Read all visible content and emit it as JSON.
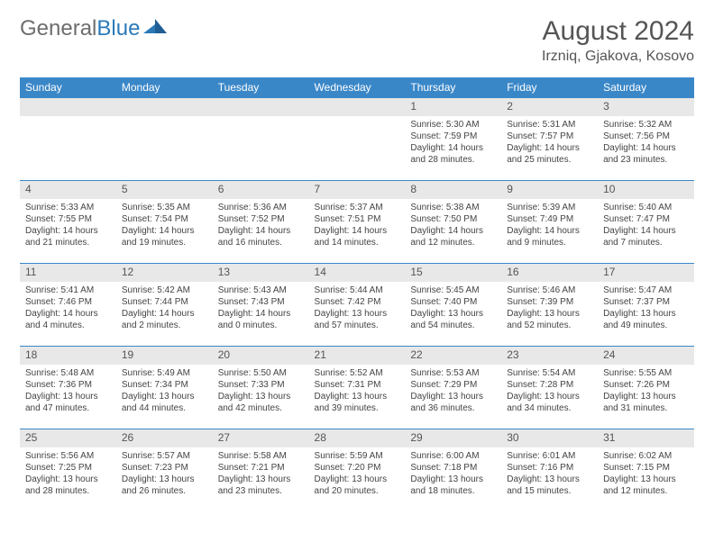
{
  "brand": {
    "part1": "General",
    "part2": "Blue"
  },
  "title": "August 2024",
  "location": "Irzniq, Gjakova, Kosovo",
  "colors": {
    "header_bg": "#3a87c8",
    "header_text": "#ffffff",
    "daynum_bg": "#e8e8e8",
    "border": "#3a87c8",
    "text": "#444444",
    "brand_gray": "#6d6d6d",
    "brand_blue": "#2a7ab9"
  },
  "day_headers": [
    "Sunday",
    "Monday",
    "Tuesday",
    "Wednesday",
    "Thursday",
    "Friday",
    "Saturday"
  ],
  "weeks": [
    [
      null,
      null,
      null,
      null,
      {
        "n": "1",
        "sr": "Sunrise: 5:30 AM",
        "ss": "Sunset: 7:59 PM",
        "dl1": "Daylight: 14 hours",
        "dl2": "and 28 minutes."
      },
      {
        "n": "2",
        "sr": "Sunrise: 5:31 AM",
        "ss": "Sunset: 7:57 PM",
        "dl1": "Daylight: 14 hours",
        "dl2": "and 25 minutes."
      },
      {
        "n": "3",
        "sr": "Sunrise: 5:32 AM",
        "ss": "Sunset: 7:56 PM",
        "dl1": "Daylight: 14 hours",
        "dl2": "and 23 minutes."
      }
    ],
    [
      {
        "n": "4",
        "sr": "Sunrise: 5:33 AM",
        "ss": "Sunset: 7:55 PM",
        "dl1": "Daylight: 14 hours",
        "dl2": "and 21 minutes."
      },
      {
        "n": "5",
        "sr": "Sunrise: 5:35 AM",
        "ss": "Sunset: 7:54 PM",
        "dl1": "Daylight: 14 hours",
        "dl2": "and 19 minutes."
      },
      {
        "n": "6",
        "sr": "Sunrise: 5:36 AM",
        "ss": "Sunset: 7:52 PM",
        "dl1": "Daylight: 14 hours",
        "dl2": "and 16 minutes."
      },
      {
        "n": "7",
        "sr": "Sunrise: 5:37 AM",
        "ss": "Sunset: 7:51 PM",
        "dl1": "Daylight: 14 hours",
        "dl2": "and 14 minutes."
      },
      {
        "n": "8",
        "sr": "Sunrise: 5:38 AM",
        "ss": "Sunset: 7:50 PM",
        "dl1": "Daylight: 14 hours",
        "dl2": "and 12 minutes."
      },
      {
        "n": "9",
        "sr": "Sunrise: 5:39 AM",
        "ss": "Sunset: 7:49 PM",
        "dl1": "Daylight: 14 hours",
        "dl2": "and 9 minutes."
      },
      {
        "n": "10",
        "sr": "Sunrise: 5:40 AM",
        "ss": "Sunset: 7:47 PM",
        "dl1": "Daylight: 14 hours",
        "dl2": "and 7 minutes."
      }
    ],
    [
      {
        "n": "11",
        "sr": "Sunrise: 5:41 AM",
        "ss": "Sunset: 7:46 PM",
        "dl1": "Daylight: 14 hours",
        "dl2": "and 4 minutes."
      },
      {
        "n": "12",
        "sr": "Sunrise: 5:42 AM",
        "ss": "Sunset: 7:44 PM",
        "dl1": "Daylight: 14 hours",
        "dl2": "and 2 minutes."
      },
      {
        "n": "13",
        "sr": "Sunrise: 5:43 AM",
        "ss": "Sunset: 7:43 PM",
        "dl1": "Daylight: 14 hours",
        "dl2": "and 0 minutes."
      },
      {
        "n": "14",
        "sr": "Sunrise: 5:44 AM",
        "ss": "Sunset: 7:42 PM",
        "dl1": "Daylight: 13 hours",
        "dl2": "and 57 minutes."
      },
      {
        "n": "15",
        "sr": "Sunrise: 5:45 AM",
        "ss": "Sunset: 7:40 PM",
        "dl1": "Daylight: 13 hours",
        "dl2": "and 54 minutes."
      },
      {
        "n": "16",
        "sr": "Sunrise: 5:46 AM",
        "ss": "Sunset: 7:39 PM",
        "dl1": "Daylight: 13 hours",
        "dl2": "and 52 minutes."
      },
      {
        "n": "17",
        "sr": "Sunrise: 5:47 AM",
        "ss": "Sunset: 7:37 PM",
        "dl1": "Daylight: 13 hours",
        "dl2": "and 49 minutes."
      }
    ],
    [
      {
        "n": "18",
        "sr": "Sunrise: 5:48 AM",
        "ss": "Sunset: 7:36 PM",
        "dl1": "Daylight: 13 hours",
        "dl2": "and 47 minutes."
      },
      {
        "n": "19",
        "sr": "Sunrise: 5:49 AM",
        "ss": "Sunset: 7:34 PM",
        "dl1": "Daylight: 13 hours",
        "dl2": "and 44 minutes."
      },
      {
        "n": "20",
        "sr": "Sunrise: 5:50 AM",
        "ss": "Sunset: 7:33 PM",
        "dl1": "Daylight: 13 hours",
        "dl2": "and 42 minutes."
      },
      {
        "n": "21",
        "sr": "Sunrise: 5:52 AM",
        "ss": "Sunset: 7:31 PM",
        "dl1": "Daylight: 13 hours",
        "dl2": "and 39 minutes."
      },
      {
        "n": "22",
        "sr": "Sunrise: 5:53 AM",
        "ss": "Sunset: 7:29 PM",
        "dl1": "Daylight: 13 hours",
        "dl2": "and 36 minutes."
      },
      {
        "n": "23",
        "sr": "Sunrise: 5:54 AM",
        "ss": "Sunset: 7:28 PM",
        "dl1": "Daylight: 13 hours",
        "dl2": "and 34 minutes."
      },
      {
        "n": "24",
        "sr": "Sunrise: 5:55 AM",
        "ss": "Sunset: 7:26 PM",
        "dl1": "Daylight: 13 hours",
        "dl2": "and 31 minutes."
      }
    ],
    [
      {
        "n": "25",
        "sr": "Sunrise: 5:56 AM",
        "ss": "Sunset: 7:25 PM",
        "dl1": "Daylight: 13 hours",
        "dl2": "and 28 minutes."
      },
      {
        "n": "26",
        "sr": "Sunrise: 5:57 AM",
        "ss": "Sunset: 7:23 PM",
        "dl1": "Daylight: 13 hours",
        "dl2": "and 26 minutes."
      },
      {
        "n": "27",
        "sr": "Sunrise: 5:58 AM",
        "ss": "Sunset: 7:21 PM",
        "dl1": "Daylight: 13 hours",
        "dl2": "and 23 minutes."
      },
      {
        "n": "28",
        "sr": "Sunrise: 5:59 AM",
        "ss": "Sunset: 7:20 PM",
        "dl1": "Daylight: 13 hours",
        "dl2": "and 20 minutes."
      },
      {
        "n": "29",
        "sr": "Sunrise: 6:00 AM",
        "ss": "Sunset: 7:18 PM",
        "dl1": "Daylight: 13 hours",
        "dl2": "and 18 minutes."
      },
      {
        "n": "30",
        "sr": "Sunrise: 6:01 AM",
        "ss": "Sunset: 7:16 PM",
        "dl1": "Daylight: 13 hours",
        "dl2": "and 15 minutes."
      },
      {
        "n": "31",
        "sr": "Sunrise: 6:02 AM",
        "ss": "Sunset: 7:15 PM",
        "dl1": "Daylight: 13 hours",
        "dl2": "and 12 minutes."
      }
    ]
  ]
}
